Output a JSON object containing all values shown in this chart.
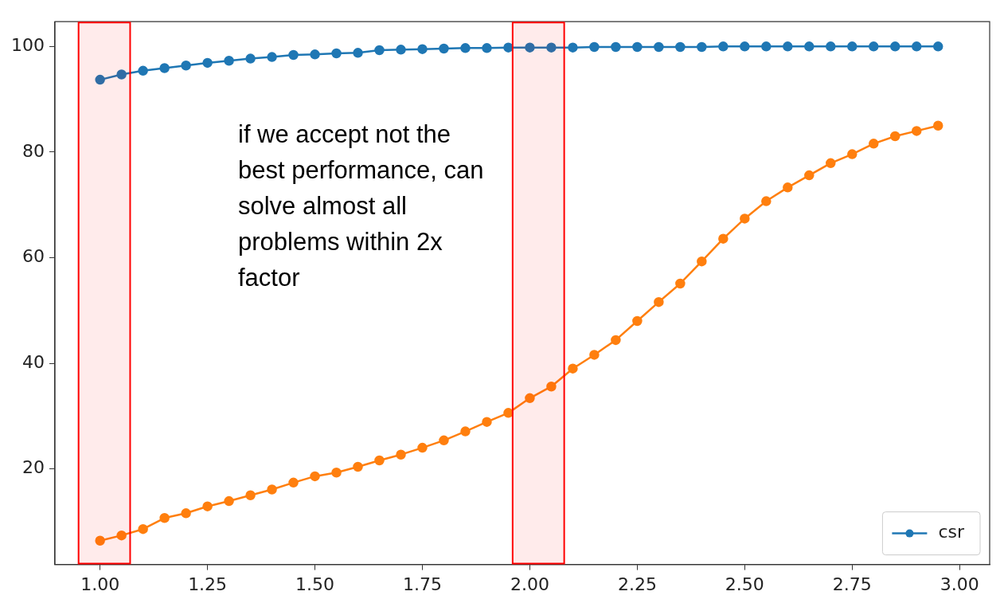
{
  "chart_data": {
    "type": "line",
    "x": [
      1.0,
      1.05,
      1.1,
      1.15,
      1.2,
      1.25,
      1.3,
      1.35,
      1.4,
      1.45,
      1.5,
      1.55,
      1.6,
      1.65,
      1.7,
      1.75,
      1.8,
      1.85,
      1.9,
      1.95,
      2.0,
      2.05,
      2.1,
      2.15,
      2.2,
      2.25,
      2.3,
      2.35,
      2.4,
      2.45,
      2.5,
      2.55,
      2.6,
      2.65,
      2.7,
      2.75,
      2.8,
      2.85,
      2.9,
      2.95
    ],
    "series": [
      {
        "name": "csr",
        "color": "#1f77b4",
        "values": [
          93.7,
          94.7,
          95.4,
          95.9,
          96.4,
          96.9,
          97.3,
          97.7,
          98.0,
          98.4,
          98.5,
          98.7,
          98.8,
          99.3,
          99.4,
          99.5,
          99.6,
          99.7,
          99.7,
          99.8,
          99.8,
          99.8,
          99.8,
          99.9,
          99.9,
          99.9,
          99.9,
          99.9,
          99.9,
          100,
          100,
          100,
          100,
          100,
          100,
          100,
          100,
          100,
          100,
          100
        ]
      },
      {
        "color": "#ff7f0e",
        "values": [
          6.4,
          7.4,
          8.6,
          10.7,
          11.6,
          12.9,
          13.9,
          15.0,
          16.1,
          17.4,
          18.6,
          19.3,
          20.4,
          21.6,
          22.7,
          24.0,
          25.4,
          27.1,
          28.9,
          30.6,
          33.4,
          35.6,
          39.0,
          41.6,
          44.4,
          48.0,
          51.6,
          55.1,
          59.3,
          63.6,
          67.4,
          70.7,
          73.3,
          75.6,
          77.9,
          79.6,
          81.6,
          83.0,
          84.0,
          85.0
        ]
      }
    ],
    "xlim": [
      0.895,
      3.07
    ],
    "ylim": [
      1.9,
      104.7
    ],
    "xticks": [
      {
        "value": 1,
        "label": "1.00"
      },
      {
        "value": 1.25,
        "label": "1.25"
      },
      {
        "value": 1.5,
        "label": "1.50"
      },
      {
        "value": 1.75,
        "label": "1.75"
      },
      {
        "value": 2,
        "label": "2.00"
      },
      {
        "value": 2.25,
        "label": "2.25"
      },
      {
        "value": 2.5,
        "label": "2.50"
      },
      {
        "value": 2.75,
        "label": "2.75"
      },
      {
        "value": 3,
        "label": "3.00"
      }
    ],
    "yticks": [
      20,
      40,
      60,
      80,
      100
    ],
    "bands": [
      {
        "axis": "x",
        "from": 0.95,
        "to": 1.07,
        "color": "#ff0000"
      },
      {
        "axis": "x",
        "from": 1.96,
        "to": 2.08,
        "color": "#ff0000"
      }
    ],
    "annotations": [
      "if we accept not the best performance, can solve almost all problems within 2x factor"
    ],
    "marker": "circle",
    "line_style": "solid",
    "grid": false,
    "legend": "bottom right"
  }
}
